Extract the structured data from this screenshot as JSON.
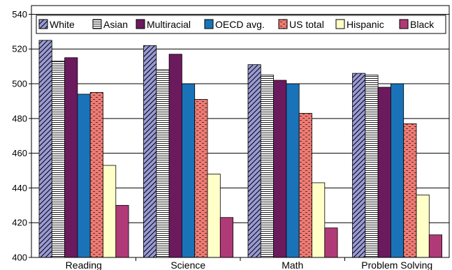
{
  "chart_data": {
    "type": "bar",
    "categories": [
      "Reading",
      "Science",
      "Math",
      "Problem Solving"
    ],
    "series": [
      {
        "name": "White",
        "values": [
          525,
          522,
          511,
          506
        ],
        "color": "#9a9ad6",
        "pattern": "diagonal"
      },
      {
        "name": "Asian",
        "values": [
          513,
          508,
          505,
          505
        ],
        "color": "#ffffff",
        "pattern": "horizontal"
      },
      {
        "name": "Multiracial",
        "values": [
          515,
          517,
          502,
          498
        ],
        "color": "#6b1a5e",
        "pattern": "solid"
      },
      {
        "name": "OECD avg.",
        "values": [
          494,
          500,
          500,
          500
        ],
        "color": "#1a73b8",
        "pattern": "solid"
      },
      {
        "name": "US total",
        "values": [
          495,
          491,
          483,
          477
        ],
        "color": "#f07a72",
        "pattern": "dashes"
      },
      {
        "name": "Hispanic",
        "values": [
          453,
          448,
          443,
          436
        ],
        "color": "#ffffc8",
        "pattern": "solid"
      },
      {
        "name": "Black",
        "values": [
          430,
          423,
          417,
          413
        ],
        "color": "#b03a78",
        "pattern": "solid"
      }
    ],
    "ylim": [
      400,
      545
    ],
    "yticks": [
      400,
      420,
      440,
      460,
      480,
      500,
      520,
      540
    ],
    "grid": true,
    "legend": "top"
  }
}
